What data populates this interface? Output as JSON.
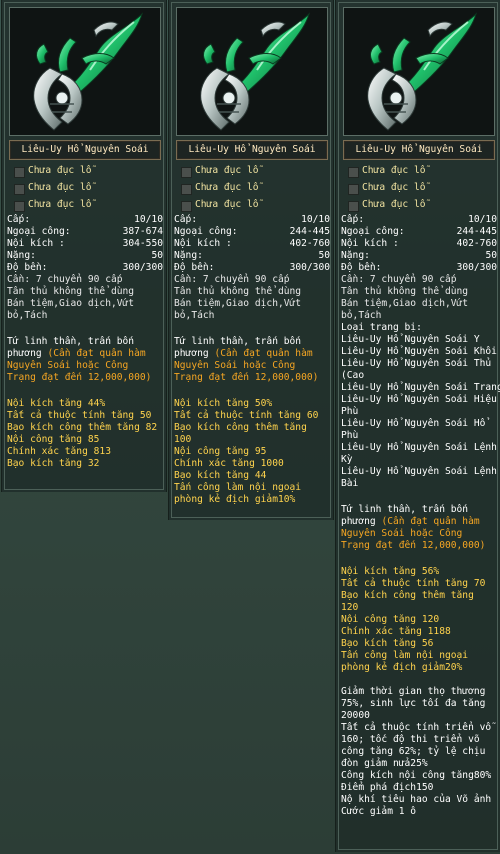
{
  "items": [
    {
      "name": "Liêu-Uy Hổ Nguyên Soái",
      "slots": [
        "Chưa đục lỗ",
        "Chưa đục lỗ",
        "Chưa đục lỗ"
      ],
      "stats": [
        {
          "label": "Cấp:",
          "value": "10/10"
        },
        {
          "label": "Ngoại công:",
          "value": "387-674"
        },
        {
          "label": "Nội kích :",
          "value": "304-550"
        },
        {
          "label": "Nặng:",
          "value": "50"
        },
        {
          "label": "Độ bền:",
          "value": "300/300"
        }
      ],
      "info_lines": [
        "Cần: 7 chuyển 90 cấp",
        "Tân thủ không thể dùng",
        "Bán tiệm,Giao dịch,Vứt",
        "bỏ,Tách"
      ],
      "set_lines": [],
      "desc_white": [
        "Tứ linh thần, trấn bốn",
        "phương "
      ],
      "desc_orange_lines": [
        "(Cần đạt quân hàm",
        "Nguyên Soái hoặc Công",
        "Trạng đạt đến 12,000,000)"
      ],
      "bonus_lines": [
        "Nội kích tăng 44%",
        "Tất cả thuộc tính tăng 50",
        "Bạo kích công thêm tăng 82",
        "Nội công tăng 85",
        "Chính xác tăng 813",
        "Bạo kích tăng 32"
      ],
      "extra_lines": []
    },
    {
      "name": "Liêu-Uy Hổ Nguyên Soái",
      "slots": [
        "Chưa đục lỗ",
        "Chưa đục lỗ",
        "Chưa đục lỗ"
      ],
      "stats": [
        {
          "label": "Cấp:",
          "value": "10/10"
        },
        {
          "label": "Ngoại công:",
          "value": "244-445"
        },
        {
          "label": "Nội kích :",
          "value": "402-760"
        },
        {
          "label": "Nặng:",
          "value": "50"
        },
        {
          "label": "Độ bền:",
          "value": "300/300"
        }
      ],
      "info_lines": [
        "Cần: 7 chuyển 90 cấp",
        "Tân thủ không thể dùng",
        "Bán tiệm,Giao dịch,Vứt",
        "bỏ,Tách"
      ],
      "set_lines": [],
      "desc_white": [
        "Tứ linh thần, trấn bốn",
        "phương "
      ],
      "desc_orange_lines": [
        "(Cần đạt quân hàm",
        "Nguyên Soái hoặc Công",
        "Trạng đạt đến 12,000,000)"
      ],
      "bonus_lines": [
        "Nội kích tăng 50%",
        "Tất cả thuộc tính tăng 60",
        "Bạo kích công thêm tăng",
        "100",
        "Nội công tăng 95",
        "Chính xác tăng 1000",
        "Bạo kích tăng 44",
        "Tấn công làm nội ngoại",
        "phòng kẻ địch giảm10%"
      ],
      "extra_lines": []
    },
    {
      "name": "Liêu-Uy Hổ Nguyên Soái",
      "slots": [
        "Chưa đục lỗ",
        "Chưa đục lỗ",
        "Chưa đục lỗ"
      ],
      "stats": [
        {
          "label": "Cấp:",
          "value": "10/10"
        },
        {
          "label": "Ngoại công:",
          "value": "244-445"
        },
        {
          "label": "Nội kích :",
          "value": "402-760"
        },
        {
          "label": "Nặng:",
          "value": "50"
        },
        {
          "label": "Độ bền:",
          "value": "300/300"
        }
      ],
      "info_lines": [
        "Cần: 7 chuyển 90 cấp",
        "Tân thủ không thể dùng",
        "Bán tiệm,Giao dịch,Vứt",
        "bỏ,Tách"
      ],
      "set_lines": [
        "Loại trang bị:",
        "Liêu-Uy Hổ Nguyên Soái Y",
        "Liêu-Uy Hổ Nguyên Soái Khôi",
        "Liêu-Uy Hổ Nguyên Soái Thủ",
        "(Cao",
        "Liêu-Uy Hổ Nguyên Soái Trang",
        "Liêu-Uy Hổ Nguyên Soái Hiệu",
        "Phù",
        "Liêu-Uy Hổ Nguyên Soái Hổ",
        "Phù",
        "Liêu-Uy Hổ Nguyên Soái Lệnh",
        "Kỳ",
        "Liêu-Uy Hổ Nguyên Soái Lệnh",
        "Bài"
      ],
      "desc_white": [
        "Tứ linh thần, trấn bốn",
        "phương "
      ],
      "desc_orange_lines": [
        "(Cần đạt quân hàm",
        "Nguyên Soái hoặc Công",
        "Trạng đạt đến 12,000,000)"
      ],
      "bonus_lines": [
        "Nội kích tăng 56%",
        "Tất cả thuộc tính tăng 70",
        "Bạo kích công thêm tăng",
        "120",
        "Nội công tăng 120",
        "Chính xác tăng 1188",
        "Bạo kích tăng 56",
        "Tấn công làm nội ngoại",
        "phòng kẻ địch giảm20%"
      ],
      "extra_lines": [
        "Giảm thời gian thọ thương",
        "75%, sinh lực tối đa tăng",
        "20000",
        "Tất cả thuộc tính triển vỗ",
        "160; tốc độ thi triển võ",
        "công tăng 62%; tỷ lệ chịu",
        "đòn giảm nửa25%",
        "Công kích nội công tăng80%",
        "Điểm phá địch150",
        "Nộ khí tiêu hao của Võ ảnh",
        "Cước giảm 1 ô"
      ]
    }
  ],
  "colors": {
    "white": "#ffffff",
    "orange": "#f5a623",
    "yellow": "#ffd34d",
    "gem": "#1fbf6a",
    "silver": "#c9d3d1"
  }
}
